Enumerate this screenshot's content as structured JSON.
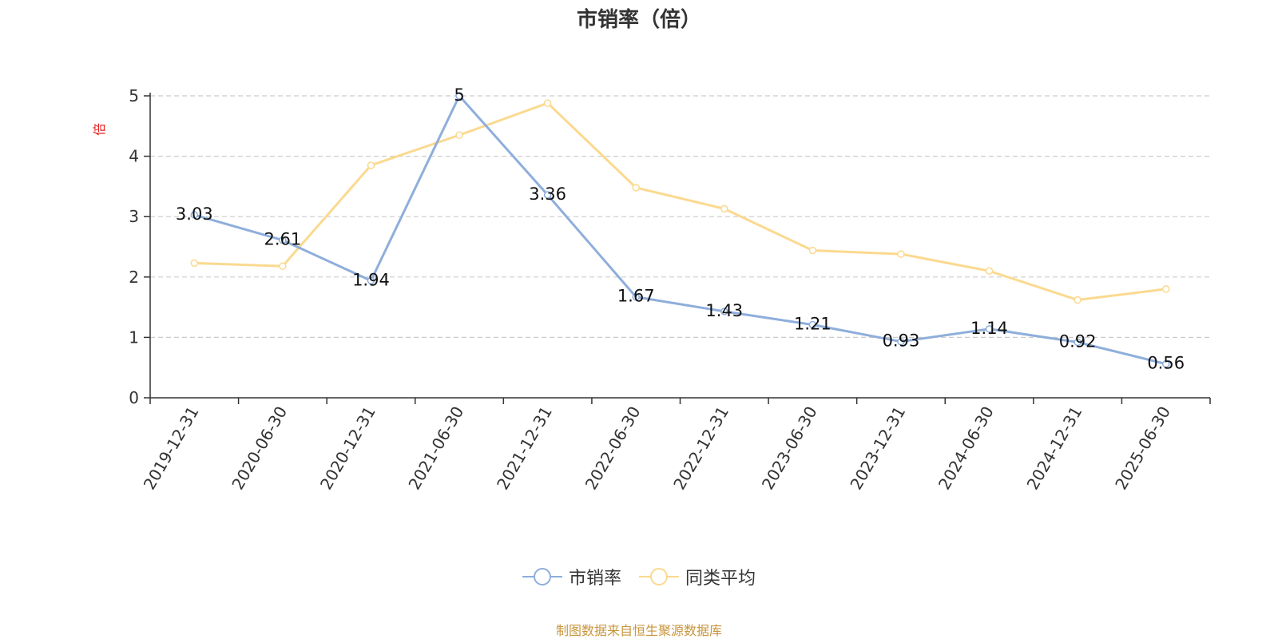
{
  "chart_data": {
    "type": "line",
    "title": "市销率（倍）",
    "ylabel": "倍",
    "xlabel": "",
    "categories": [
      "2019-12-31",
      "2020-06-30",
      "2020-12-31",
      "2021-06-30",
      "2021-12-31",
      "2022-06-30",
      "2022-12-31",
      "2023-06-30",
      "2023-12-31",
      "2024-06-30",
      "2024-12-31",
      "2025-06-30"
    ],
    "yticks": [
      0,
      1,
      2,
      3,
      4,
      5
    ],
    "ylim": [
      0,
      5
    ],
    "grid": true,
    "legend_position": "bottom-center",
    "series": [
      {
        "name": "市销率",
        "color": "#8eaedb",
        "values": [
          3.03,
          2.61,
          1.94,
          5,
          3.36,
          1.67,
          1.43,
          1.21,
          0.93,
          1.14,
          0.92,
          0.56
        ],
        "labels": [
          "3.03",
          "2.61",
          "1.94",
          "5",
          "3.36",
          "1.67",
          "1.43",
          "1.21",
          "0.93",
          "1.14",
          "0.92",
          "0.56"
        ]
      },
      {
        "name": "同类平均",
        "color": "#fbd98f",
        "values": [
          2.23,
          2.18,
          3.85,
          4.35,
          4.88,
          3.48,
          3.13,
          2.44,
          2.38,
          2.1,
          1.62,
          1.8
        ]
      }
    ]
  },
  "footer": {
    "source": "制图数据来自恒生聚源数据库"
  }
}
